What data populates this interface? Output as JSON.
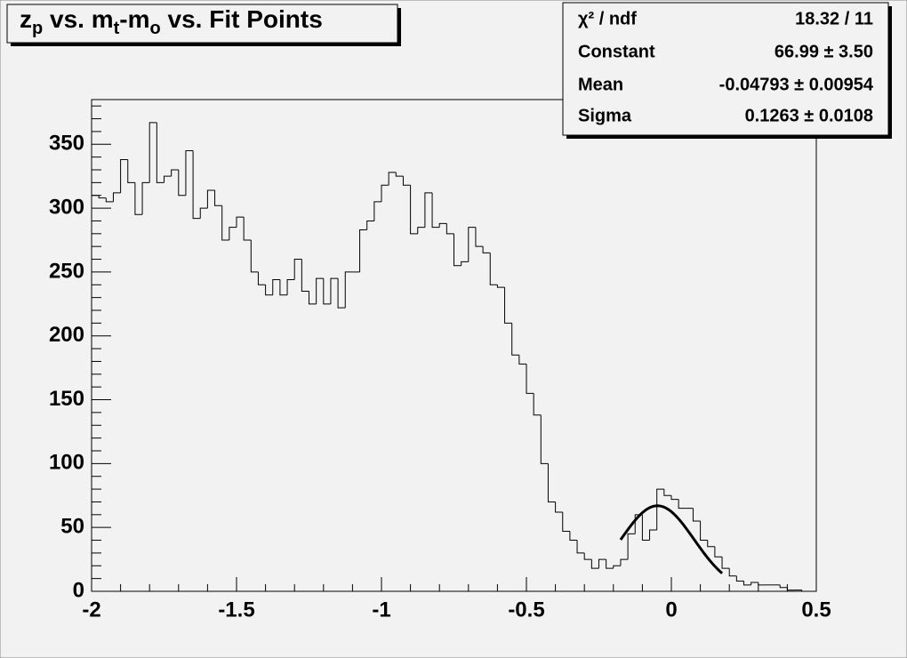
{
  "chart_data": {
    "type": "histogram",
    "title_parts": [
      "z",
      "p",
      " vs. m",
      "t",
      "-m",
      "o",
      " vs. Fit Points"
    ],
    "bins": [
      -2,
      -1.975,
      -1.95,
      -1.925,
      -1.9,
      -1.875,
      -1.85,
      -1.825,
      -1.8,
      -1.775,
      -1.75,
      -1.725,
      -1.7,
      -1.675,
      -1.65,
      -1.625,
      -1.6,
      -1.575,
      -1.55,
      -1.525,
      -1.5,
      -1.475,
      -1.45,
      -1.425,
      -1.4,
      -1.375,
      -1.35,
      -1.325,
      -1.3,
      -1.275,
      -1.25,
      -1.225,
      -1.2,
      -1.175,
      -1.15,
      -1.125,
      -1.1,
      -1.075,
      -1.05,
      -1.025,
      -1,
      -0.975,
      -0.95,
      -0.925,
      -0.9,
      -0.875,
      -0.85,
      -0.825,
      -0.8,
      -0.775,
      -0.75,
      -0.725,
      -0.7,
      -0.675,
      -0.65,
      -0.625,
      -0.6,
      -0.575,
      -0.55,
      -0.525,
      -0.5,
      -0.475,
      -0.45,
      -0.425,
      -0.4,
      -0.375,
      -0.35,
      -0.325,
      -0.3,
      -0.275,
      -0.25,
      -0.225,
      -0.2,
      -0.175,
      -0.15,
      -0.125,
      -0.1,
      -0.075,
      -0.05,
      -0.025,
      0,
      0.025,
      0.05,
      0.075,
      0.1,
      0.125,
      0.15,
      0.175,
      0.2,
      0.225,
      0.25,
      0.275,
      0.3,
      0.325,
      0.35,
      0.375,
      0.4,
      0.425,
      0.45,
      0.475,
      0.5
    ],
    "values": [
      310,
      308,
      305,
      312,
      338,
      320,
      295,
      320,
      367,
      320,
      325,
      330,
      310,
      345,
      292,
      300,
      314,
      302,
      275,
      285,
      293,
      275,
      250,
      240,
      232,
      244,
      232,
      244,
      260,
      235,
      225,
      245,
      225,
      245,
      222,
      250,
      250,
      283,
      290,
      305,
      318,
      328,
      325,
      318,
      280,
      285,
      312,
      285,
      288,
      280,
      255,
      258,
      285,
      270,
      265,
      240,
      238,
      210,
      185,
      178,
      155,
      138,
      100,
      70,
      62,
      47,
      40,
      30,
      25,
      18,
      25,
      18,
      20,
      25,
      45,
      60,
      40,
      48,
      80,
      75,
      72,
      65,
      65,
      55,
      40,
      35,
      27,
      18,
      12,
      8,
      5,
      7,
      5,
      5,
      5,
      3,
      1,
      1,
      0,
      0
    ],
    "color": "#000000",
    "xlim": [
      -2,
      0.5
    ],
    "xticks": [
      -2,
      -1.5,
      -1,
      -0.5,
      0,
      0.5
    ],
    "ylim": [
      0,
      385
    ],
    "yticks": [
      0,
      50,
      100,
      150,
      200,
      250,
      300,
      350
    ],
    "fit_range": [
      -0.175,
      0.175
    ],
    "fit_color": "#000000",
    "stats": [
      {
        "label": "χ² / ndf",
        "value": "18.32 / 11"
      },
      {
        "label": "Constant",
        "value": "66.99 ± 3.50"
      },
      {
        "label": "Mean",
        "value": "-0.04793 ± 0.00954"
      },
      {
        "label": "Sigma",
        "value": "0.1263 ± 0.0108"
      }
    ]
  }
}
